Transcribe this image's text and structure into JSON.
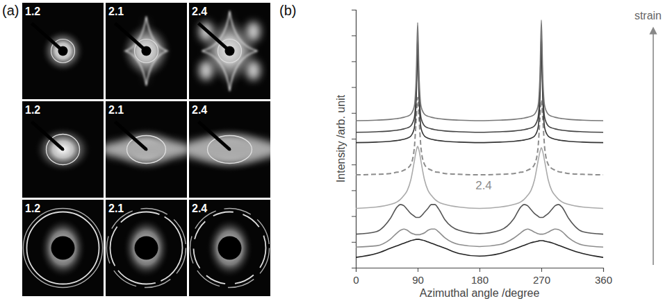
{
  "figure": {
    "panel_a": {
      "letter": "(a)",
      "rows": [
        [
          "1.2",
          "2.1",
          "2.4"
        ],
        [
          "1.2",
          "2.1",
          "2.4"
        ],
        [
          "1.2",
          "2.1",
          "2.4"
        ]
      ]
    }
  },
  "chart_data": {
    "type": "line",
    "panel_label": "(b)",
    "x_label": "Azimuthal angle /degree",
    "y_label": "Intensity /arb. unit",
    "annotations": [
      "2.4",
      "strain"
    ],
    "x": [
      0,
      30,
      50,
      60,
      65,
      70,
      75,
      80,
      85,
      88,
      90,
      92,
      95,
      100,
      105,
      110,
      115,
      120,
      130,
      150,
      180,
      210,
      230,
      240,
      245,
      250,
      255,
      260,
      265,
      268,
      270,
      272,
      275,
      280,
      285,
      290,
      295,
      300,
      310,
      330,
      360
    ],
    "series": [
      {
        "color": "#222222",
        "line_style": "solid",
        "values": [
          0.4,
          0.55,
          0.75,
          0.85,
          0.9,
          0.95,
          1.0,
          1.05,
          1.08,
          1.1,
          1.1,
          1.1,
          1.08,
          1.05,
          1.0,
          0.95,
          0.9,
          0.85,
          0.75,
          0.55,
          0.45,
          0.55,
          0.72,
          0.82,
          0.87,
          0.92,
          0.97,
          1.0,
          1.03,
          1.05,
          1.05,
          1.05,
          1.03,
          1.0,
          0.97,
          0.92,
          0.87,
          0.82,
          0.72,
          0.55,
          0.4
        ]
      },
      {
        "color": "#8c8c8c",
        "line_style": "solid",
        "values": [
          0.8,
          0.85,
          1.1,
          1.35,
          1.45,
          1.5,
          1.45,
          1.35,
          1.3,
          1.28,
          1.28,
          1.28,
          1.3,
          1.35,
          1.45,
          1.5,
          1.5,
          1.4,
          1.15,
          0.9,
          0.82,
          0.9,
          1.15,
          1.35,
          1.45,
          1.5,
          1.45,
          1.38,
          1.32,
          1.3,
          1.3,
          1.3,
          1.32,
          1.38,
          1.45,
          1.5,
          1.48,
          1.4,
          1.15,
          0.88,
          0.8
        ]
      },
      {
        "color": "#555555",
        "line_style": "solid",
        "values": [
          1.3,
          1.4,
          1.9,
          2.35,
          2.45,
          2.4,
          2.25,
          2.1,
          2.0,
          1.95,
          1.95,
          1.95,
          2.0,
          2.15,
          2.3,
          2.45,
          2.45,
          2.3,
          1.85,
          1.45,
          1.32,
          1.45,
          1.9,
          2.35,
          2.45,
          2.4,
          2.25,
          2.1,
          2.0,
          1.95,
          1.95,
          1.95,
          2.0,
          2.1,
          2.25,
          2.4,
          2.45,
          2.35,
          1.9,
          1.4,
          1.3
        ]
      },
      {
        "color": "#aaaaaa",
        "line_style": "solid",
        "values": [
          2.3,
          2.35,
          2.45,
          2.55,
          2.65,
          2.8,
          3.0,
          3.4,
          4.1,
          4.55,
          4.7,
          4.55,
          4.1,
          3.4,
          3.0,
          2.8,
          2.65,
          2.55,
          2.45,
          2.35,
          2.3,
          2.35,
          2.45,
          2.55,
          2.65,
          2.8,
          3.0,
          3.4,
          4.1,
          4.5,
          4.65,
          4.5,
          4.1,
          3.4,
          3.0,
          2.8,
          2.65,
          2.55,
          2.45,
          2.35,
          2.3
        ]
      },
      {
        "color": "#8c8c8c",
        "line_style": "dashed",
        "values": [
          3.6,
          3.62,
          3.65,
          3.7,
          3.72,
          3.78,
          3.85,
          4.0,
          4.6,
          5.8,
          6.6,
          5.8,
          4.6,
          4.0,
          3.85,
          3.78,
          3.72,
          3.7,
          3.65,
          3.62,
          3.6,
          3.62,
          3.65,
          3.7,
          3.72,
          3.78,
          3.85,
          4.0,
          4.6,
          5.8,
          6.5,
          5.8,
          4.6,
          4.0,
          3.85,
          3.78,
          3.72,
          3.7,
          3.65,
          3.62,
          3.6
        ]
      },
      {
        "color": "#333333",
        "line_style": "solid",
        "values": [
          4.85,
          4.87,
          4.9,
          4.93,
          4.95,
          4.98,
          5.02,
          5.1,
          5.4,
          6.6,
          8.4,
          6.6,
          5.4,
          5.1,
          5.02,
          4.98,
          4.95,
          4.93,
          4.9,
          4.87,
          4.85,
          4.87,
          4.9,
          4.93,
          4.95,
          4.98,
          5.02,
          5.1,
          5.4,
          6.6,
          8.5,
          6.6,
          5.4,
          5.1,
          5.02,
          4.98,
          4.95,
          4.93,
          4.9,
          4.87,
          4.85
        ]
      },
      {
        "color": "#444444",
        "line_style": "solid",
        "values": [
          5.25,
          5.27,
          5.3,
          5.33,
          5.35,
          5.38,
          5.42,
          5.5,
          5.8,
          7.0,
          8.9,
          7.0,
          5.8,
          5.5,
          5.42,
          5.38,
          5.35,
          5.33,
          5.3,
          5.27,
          5.25,
          5.27,
          5.3,
          5.33,
          5.35,
          5.38,
          5.42,
          5.5,
          5.8,
          7.0,
          9.0,
          7.0,
          5.8,
          5.5,
          5.42,
          5.38,
          5.35,
          5.33,
          5.3,
          5.27,
          5.25
        ]
      },
      {
        "color": "#777777",
        "line_style": "solid",
        "values": [
          5.7,
          5.72,
          5.75,
          5.78,
          5.8,
          5.83,
          5.87,
          5.95,
          6.25,
          7.5,
          9.5,
          7.5,
          6.25,
          5.95,
          5.87,
          5.83,
          5.8,
          5.78,
          5.75,
          5.72,
          5.7,
          5.72,
          5.75,
          5.78,
          5.8,
          5.83,
          5.87,
          5.95,
          6.25,
          7.5,
          9.6,
          7.5,
          6.25,
          5.95,
          5.87,
          5.83,
          5.8,
          5.78,
          5.75,
          5.72,
          5.7
        ]
      }
    ],
    "xlim": [
      0,
      360
    ],
    "xticks": [
      0,
      90,
      180,
      270,
      360
    ],
    "ylim": [
      0,
      10
    ],
    "yticks": [
      0,
      1,
      2,
      3,
      4,
      5,
      6,
      7,
      8,
      9,
      10
    ],
    "tick_labels": "x",
    "grid": false
  }
}
